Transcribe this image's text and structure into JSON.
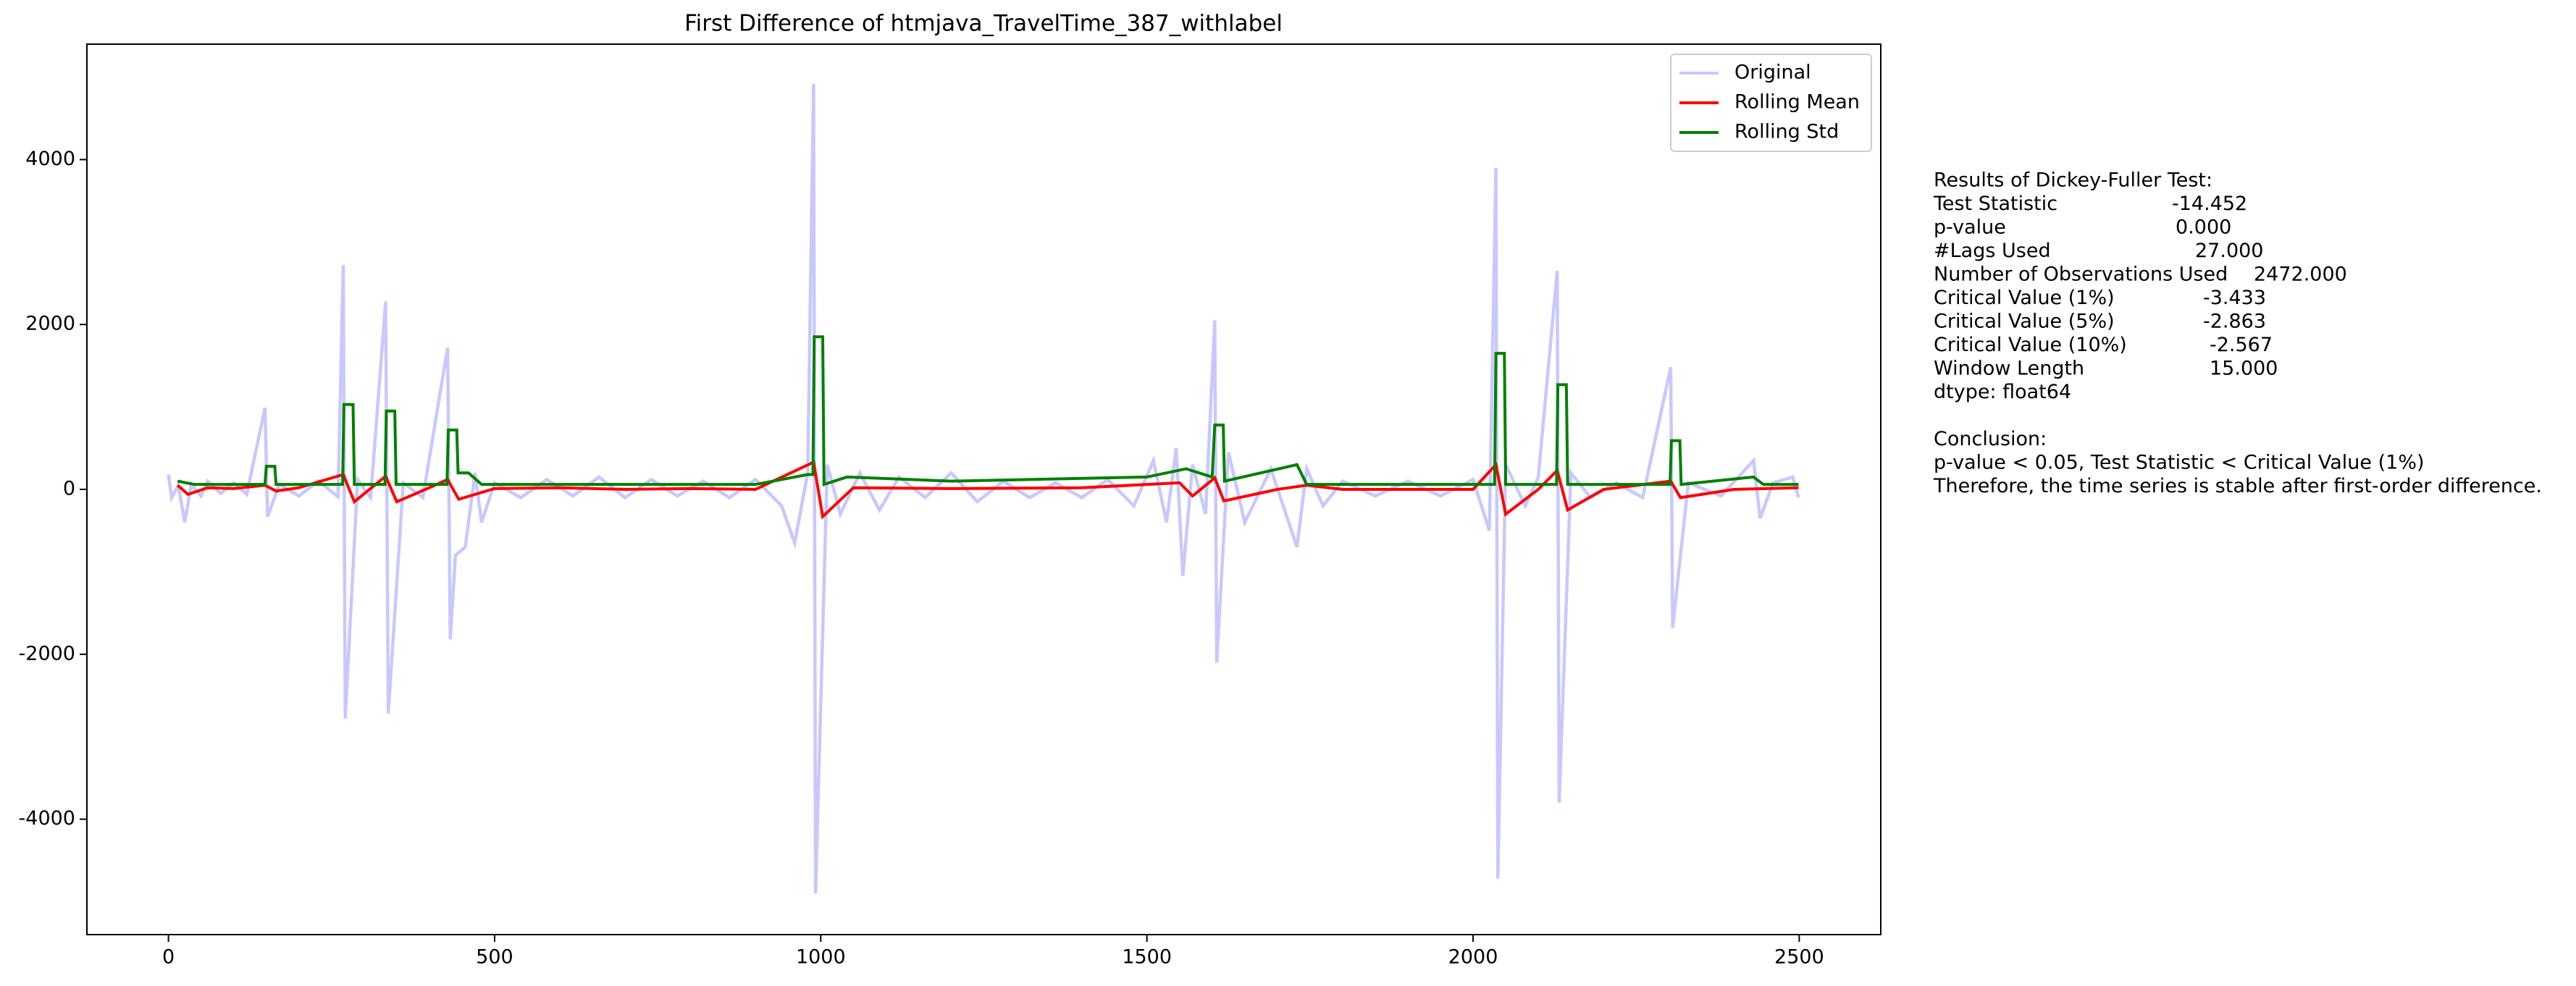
{
  "chart_data": {
    "type": "line",
    "title": "First Difference of htmjava_TravelTime_387_withlabel",
    "xlim": [
      -125,
      2625
    ],
    "ylim": [
      -5400,
      5400
    ],
    "xticks": [
      0,
      500,
      1000,
      1500,
      2000,
      2500
    ],
    "yticks": [
      -4000,
      -2000,
      0,
      2000,
      4000
    ],
    "legend": "upper right",
    "series": [
      {
        "name": "Original",
        "color": "#c8c8ff",
        "x": [
          0,
          5,
          15,
          25,
          35,
          50,
          60,
          80,
          100,
          120,
          148,
          152,
          170,
          200,
          230,
          260,
          268,
          271,
          290,
          310,
          333,
          337,
          360,
          390,
          428,
          432,
          440,
          455,
          470,
          480,
          500,
          540,
          580,
          620,
          660,
          700,
          740,
          780,
          820,
          860,
          900,
          940,
          960,
          980,
          989,
          992,
          1010,
          1030,
          1060,
          1090,
          1120,
          1160,
          1200,
          1240,
          1280,
          1320,
          1360,
          1400,
          1440,
          1480,
          1510,
          1530,
          1545,
          1555,
          1570,
          1590,
          1604,
          1607,
          1625,
          1650,
          1690,
          1730,
          1745,
          1770,
          1800,
          1850,
          1900,
          1950,
          2000,
          2025,
          2035,
          2038,
          2050,
          2080,
          2100,
          2129,
          2132,
          2150,
          2180,
          2220,
          2260,
          2303,
          2306,
          2330,
          2380,
          2430,
          2440,
          2460,
          2490,
          2499
        ],
        "values": [
          180,
          -100,
          50,
          -400,
          60,
          -80,
          100,
          -50,
          80,
          -60,
          990,
          -330,
          60,
          -80,
          100,
          -90,
          2720,
          -2780,
          120,
          -100,
          2280,
          -2720,
          80,
          -100,
          1720,
          -1820,
          -800,
          -700,
          200,
          -400,
          80,
          -100,
          120,
          -80,
          150,
          -100,
          120,
          -80,
          100,
          -100,
          120,
          -200,
          -650,
          200,
          4920,
          -4900,
          300,
          -300,
          200,
          -250,
          150,
          -100,
          200,
          -150,
          100,
          -100,
          80,
          -100,
          120,
          -200,
          350,
          -400,
          500,
          -1050,
          300,
          -300,
          2050,
          -2100,
          450,
          -400,
          250,
          -700,
          250,
          -200,
          100,
          -80,
          100,
          -80,
          120,
          -500,
          3900,
          -4720,
          300,
          -200,
          150,
          2650,
          -3800,
          200,
          -100,
          80,
          -100,
          1480,
          -1680,
          80,
          -80,
          350,
          -350,
          80,
          150,
          -100
        ]
      },
      {
        "name": "Rolling Mean",
        "color": "#ff0000",
        "x": [
          14,
          30,
          60,
          100,
          148,
          165,
          200,
          268,
          285,
          333,
          350,
          400,
          428,
          445,
          500,
          600,
          700,
          800,
          900,
          989,
          1003,
          1050,
          1200,
          1400,
          1550,
          1570,
          1604,
          1618,
          1700,
          1745,
          1800,
          2000,
          2035,
          2050,
          2100,
          2129,
          2145,
          2200,
          2303,
          2318,
          2400,
          2499
        ],
        "values": [
          50,
          -60,
          20,
          10,
          50,
          -20,
          20,
          180,
          -150,
          160,
          -150,
          20,
          120,
          -120,
          10,
          20,
          0,
          10,
          0,
          330,
          -330,
          20,
          10,
          20,
          80,
          -80,
          140,
          -140,
          0,
          50,
          0,
          0,
          300,
          -300,
          0,
          230,
          -250,
          0,
          100,
          -100,
          0,
          20
        ]
      },
      {
        "name": "Rolling Std",
        "color": "#008000",
        "x": [
          14,
          40,
          148,
          150,
          163,
          165,
          267,
          269,
          283,
          285,
          332,
          334,
          347,
          349,
          427,
          429,
          442,
          444,
          460,
          480,
          900,
          980,
          988,
          990,
          1003,
          1005,
          1040,
          1200,
          1500,
          1560,
          1600,
          1604,
          1617,
          1619,
          1730,
          1745,
          2000,
          2033,
          2035,
          2048,
          2050,
          2128,
          2130,
          2143,
          2145,
          2302,
          2304,
          2317,
          2319,
          2430,
          2445,
          2499
        ],
        "values": [
          100,
          60,
          60,
          280,
          280,
          60,
          60,
          1030,
          1030,
          60,
          60,
          950,
          950,
          60,
          60,
          720,
          720,
          200,
          200,
          60,
          60,
          180,
          180,
          1850,
          1850,
          60,
          150,
          100,
          150,
          250,
          150,
          780,
          780,
          100,
          300,
          60,
          60,
          60,
          1650,
          1650,
          60,
          60,
          1270,
          1270,
          60,
          60,
          590,
          590,
          60,
          150,
          60,
          60
        ]
      }
    ]
  },
  "results": {
    "heading": "Results of Dickey-Fuller Test:",
    "rows": [
      {
        "label": "Test Statistic",
        "value": "-14.452"
      },
      {
        "label": "p-value",
        "value": "0.000"
      },
      {
        "label": "#Lags Used",
        "value": "27.000"
      },
      {
        "label": "Number of Observations Used",
        "value": "2472.000"
      },
      {
        "label": "Critical Value (1%)",
        "value": "-3.433"
      },
      {
        "label": "Critical Value (5%)",
        "value": "-2.863"
      },
      {
        "label": "Critical Value (10%)",
        "value": "-2.567"
      },
      {
        "label": "Window Length",
        "value": "15.000"
      }
    ],
    "dtype": "dtype: float64",
    "conclusion_heading": "Conclusion:",
    "conclusion": [
      "p-value < 0.05, Test Statistic < Critical Value (1%)",
      "Therefore, the time series is stable after first-order difference."
    ]
  }
}
